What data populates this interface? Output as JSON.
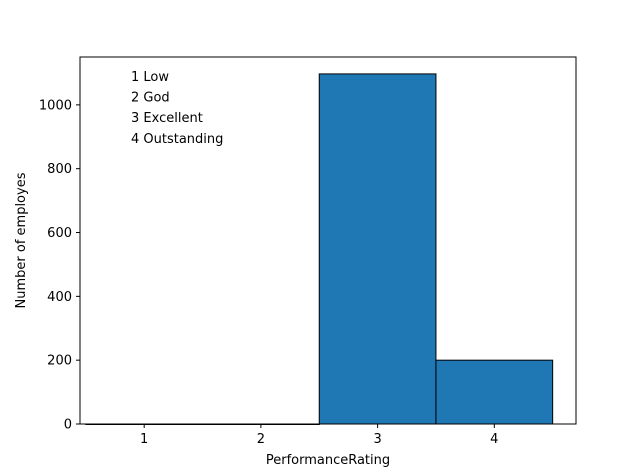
{
  "chart_data": {
    "type": "bar",
    "categories": [
      "1",
      "2",
      "3",
      "4"
    ],
    "x": [
      1,
      2,
      3,
      4
    ],
    "values": [
      0,
      0,
      1097,
      200
    ],
    "xlabel": "PerformanceRating",
    "ylabel": "Number of employes",
    "xlim": [
      0.45,
      4.7
    ],
    "ylim": [
      0,
      1150
    ],
    "yticks": [
      0,
      200,
      400,
      600,
      800,
      1000
    ],
    "xticks": [
      1,
      2,
      3,
      4
    ],
    "bar_color": "#1f77b4",
    "edge_color": "#000000",
    "grid": false,
    "annotations": [
      "1 Low",
      "2 God",
      "3 Excellent",
      "4 Outstanding"
    ]
  }
}
